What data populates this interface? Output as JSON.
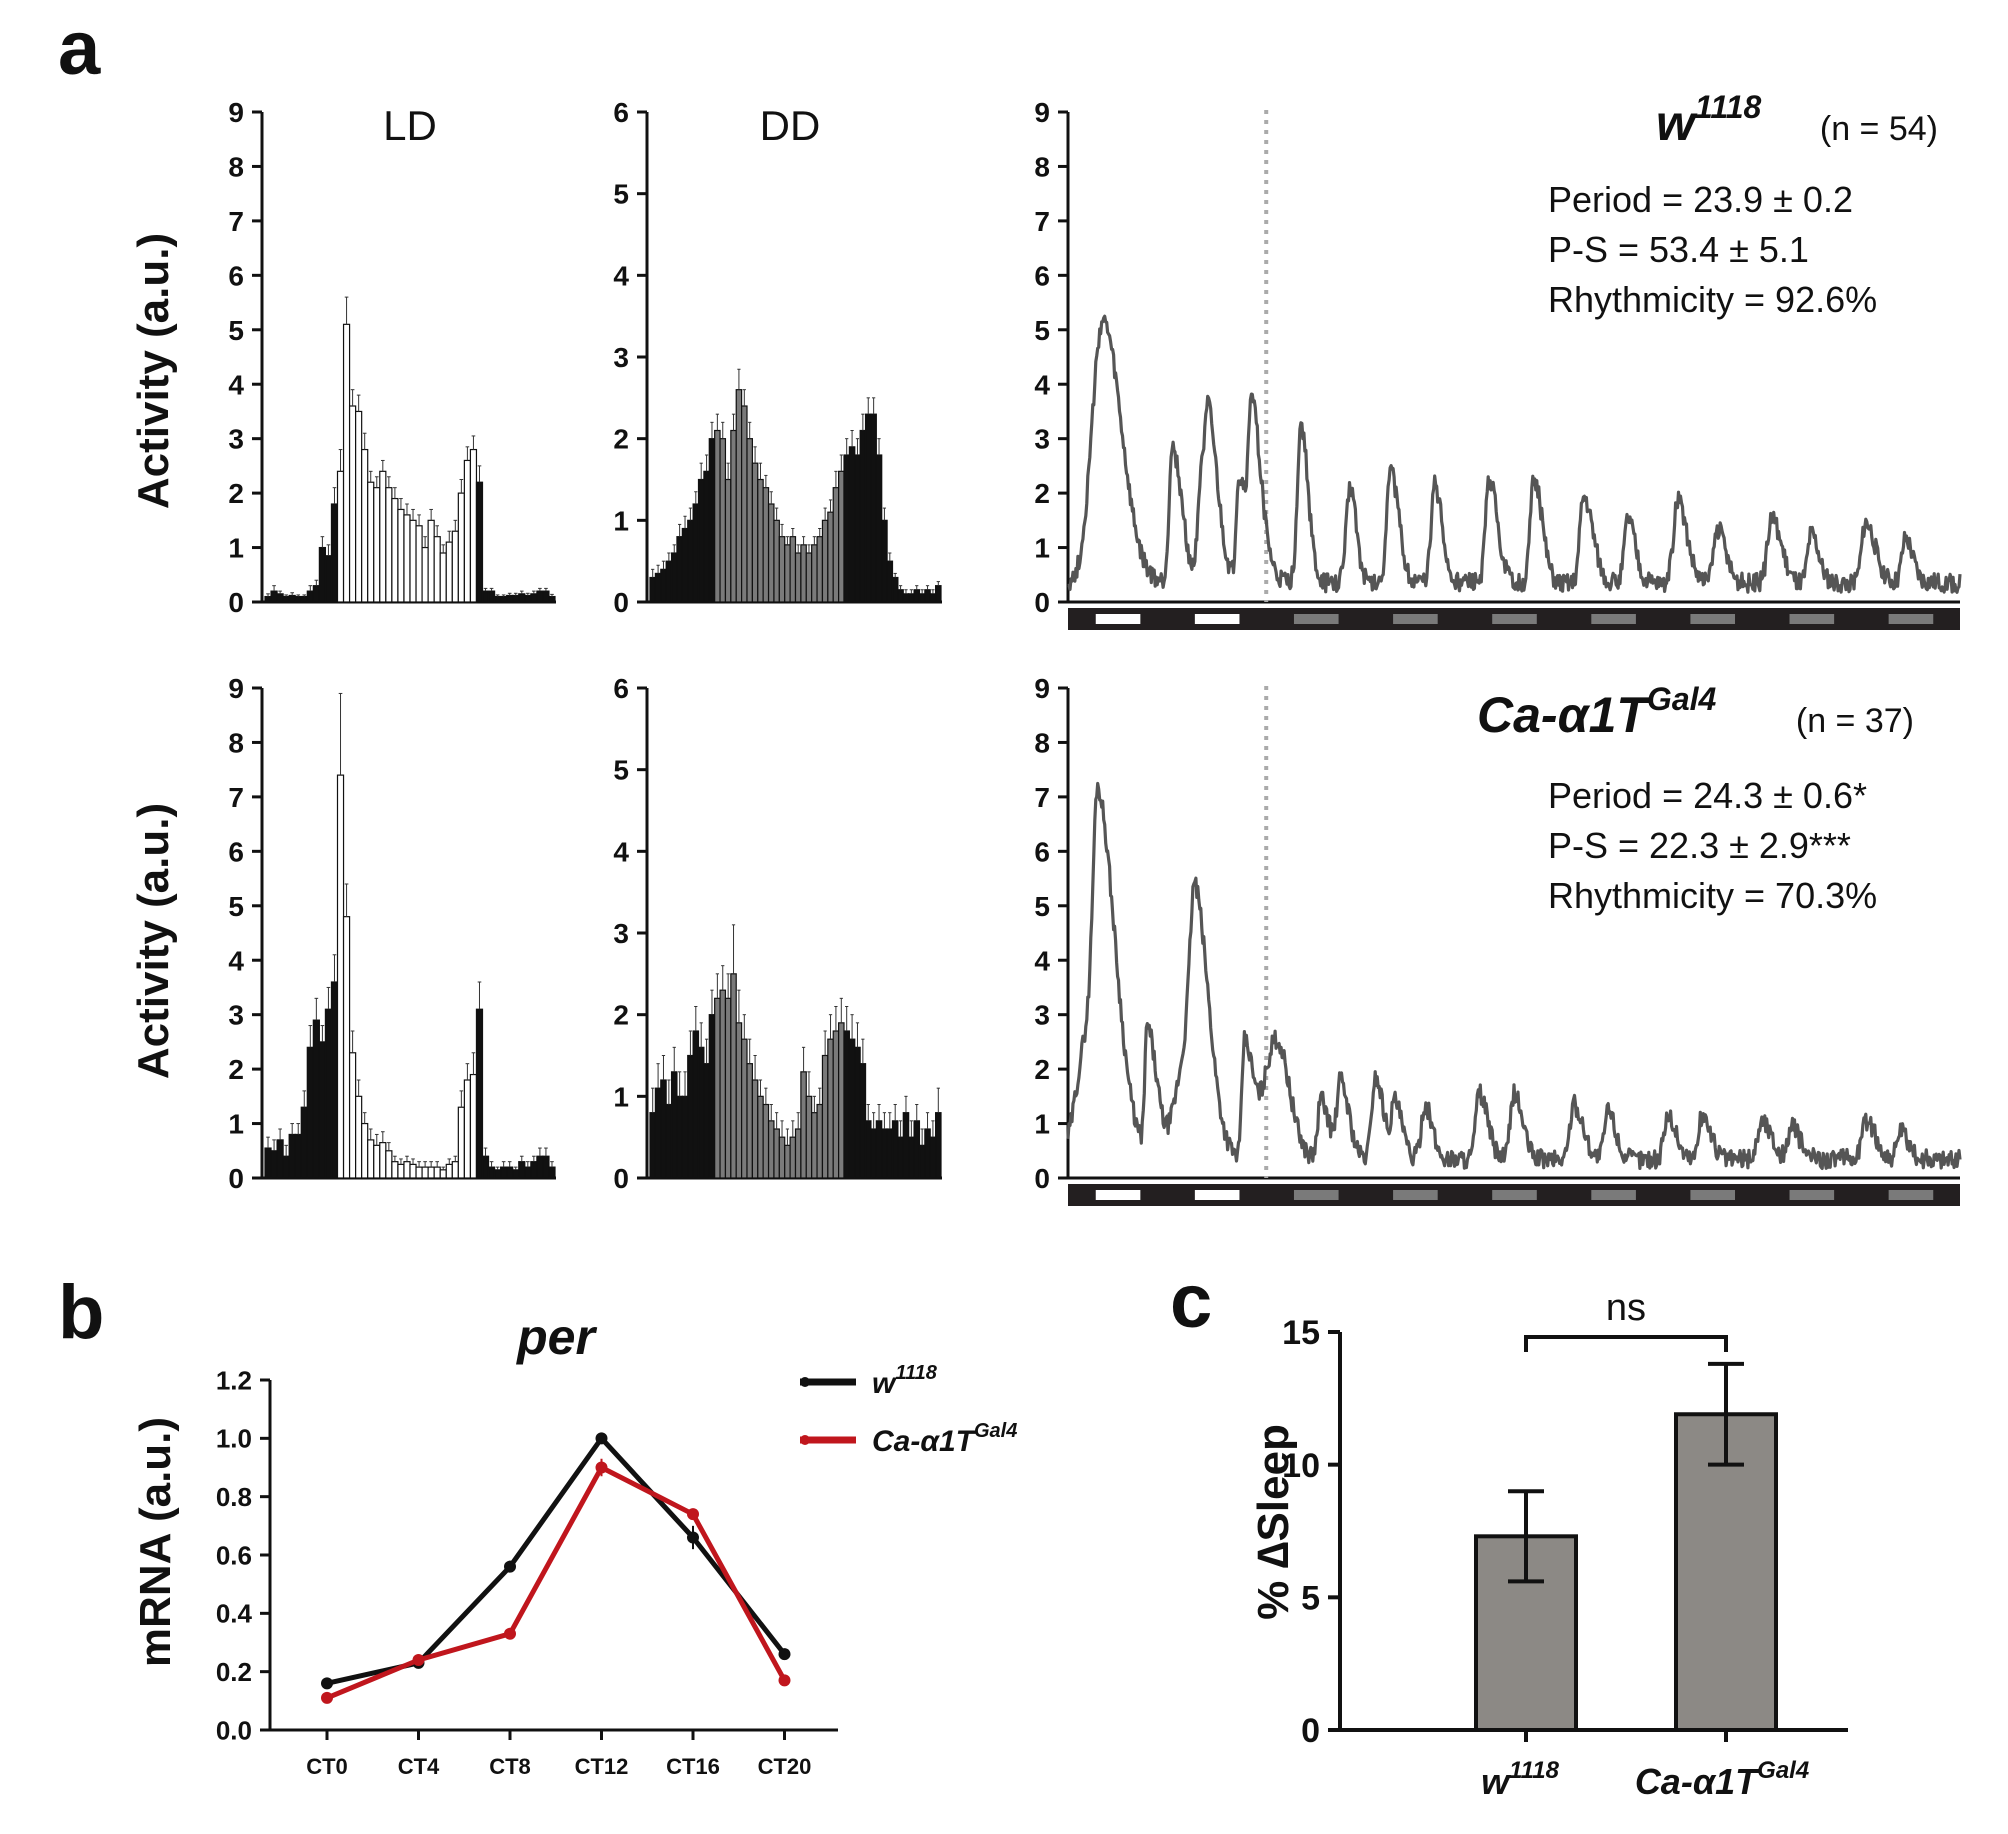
{
  "panel_labels": {
    "a": "a",
    "b": "b",
    "c": "c"
  },
  "colors": {
    "black": "#111111",
    "red": "#c0161d",
    "gray_trace": "#555555",
    "dd_bar": "#7a7a7a",
    "sleep_bar": "#8c8985",
    "dark_band": "#231f20",
    "light_band": "#ffffff",
    "subjective_day": "#7a7a7a"
  },
  "panel_a": {
    "ylabel": "Activity (a.u.)",
    "conditions": {
      "ld": "LD",
      "dd": "DD"
    },
    "rows": [
      {
        "genotype": "w",
        "genotype_sup": "1118",
        "n": "(n = 54)",
        "stats": [
          "Period = 23.9 ± 0.2",
          "P-S = 53.4 ± 5.1",
          "Rhythmicity = 92.6%"
        ]
      },
      {
        "genotype": "Ca-α1T",
        "genotype_sup": "Gal4",
        "n": "(n = 37)",
        "stats": [
          "Period = 24.3 ± 0.6*",
          "P-S = 22.3 ± 2.9***",
          "Rhythmicity = 70.3%"
        ]
      }
    ]
  },
  "chart_data": [
    {
      "id": "a_w1118_LD",
      "type": "bar",
      "title": "LD",
      "ylim": [
        0,
        9
      ],
      "yticks": [
        0,
        1,
        2,
        3,
        4,
        5,
        6,
        7,
        8,
        9
      ],
      "light_bins": [
        12,
        35
      ],
      "values": [
        0.1,
        0.2,
        0.15,
        0.1,
        0.12,
        0.1,
        0.1,
        0.2,
        0.3,
        1.0,
        0.85,
        1.8,
        2.4,
        5.1,
        3.6,
        3.5,
        2.8,
        2.2,
        2.1,
        2.4,
        2.1,
        1.9,
        1.7,
        1.6,
        1.5,
        1.4,
        1.0,
        1.5,
        1.2,
        0.9,
        1.1,
        1.3,
        2.0,
        2.6,
        2.8,
        2.2,
        0.2,
        0.2,
        0.1,
        0.1,
        0.12,
        0.12,
        0.15,
        0.12,
        0.15,
        0.2,
        0.2,
        0.1
      ],
      "errors": [
        0.05,
        0.1,
        0.05,
        0.03,
        0.05,
        0.03,
        0.03,
        0.1,
        0.1,
        0.2,
        0.2,
        0.3,
        0.4,
        0.5,
        0.3,
        0.3,
        0.3,
        0.2,
        0.2,
        0.2,
        0.2,
        0.2,
        0.2,
        0.2,
        0.2,
        0.2,
        0.2,
        0.2,
        0.2,
        0.15,
        0.2,
        0.2,
        0.25,
        0.25,
        0.25,
        0.3,
        0.05,
        0.05,
        0.03,
        0.03,
        0.04,
        0.04,
        0.05,
        0.04,
        0.05,
        0.05,
        0.05,
        0.04
      ]
    },
    {
      "id": "a_w1118_DD",
      "type": "bar",
      "title": "DD",
      "ylim": [
        0,
        6
      ],
      "yticks": [
        0,
        1,
        2,
        3,
        4,
        5,
        6
      ],
      "light_bins": [
        12,
        36
      ],
      "values": [
        0.3,
        0.35,
        0.4,
        0.5,
        0.6,
        0.8,
        0.9,
        1.0,
        1.2,
        1.5,
        1.6,
        2.0,
        2.1,
        2.0,
        1.5,
        2.1,
        2.6,
        2.4,
        2.0,
        1.7,
        1.5,
        1.4,
        1.2,
        1.0,
        0.8,
        0.7,
        0.8,
        0.6,
        0.7,
        0.6,
        0.7,
        0.8,
        1.0,
        1.1,
        1.4,
        1.6,
        1.8,
        1.9,
        1.8,
        2.1,
        2.3,
        2.3,
        1.8,
        1.0,
        0.5,
        0.3,
        0.15,
        0.1,
        0.1,
        0.15,
        0.1,
        0.15,
        0.1,
        0.2
      ],
      "errors": [
        0.1,
        0.1,
        0.1,
        0.1,
        0.1,
        0.15,
        0.15,
        0.15,
        0.15,
        0.2,
        0.2,
        0.2,
        0.2,
        0.2,
        0.2,
        0.2,
        0.25,
        0.2,
        0.2,
        0.2,
        0.2,
        0.15,
        0.15,
        0.15,
        0.15,
        0.1,
        0.1,
        0.1,
        0.1,
        0.1,
        0.1,
        0.1,
        0.15,
        0.15,
        0.2,
        0.2,
        0.2,
        0.2,
        0.2,
        0.2,
        0.2,
        0.2,
        0.2,
        0.15,
        0.1,
        0.05,
        0.05,
        0.05,
        0.05,
        0.05,
        0.05,
        0.05,
        0.05,
        0.05
      ]
    },
    {
      "id": "a_w1118_trace",
      "type": "line",
      "ylim": [
        0,
        9
      ],
      "yticks": [
        0,
        1,
        2,
        3,
        4,
        5,
        6,
        7,
        8,
        9
      ],
      "days": 9,
      "ld_days": 2,
      "peaks": [
        [
          0.35,
          1.55,
          0.9,
          4.8
        ],
        [
          1.05,
          0.8,
          0.25,
          2.5
        ],
        [
          1.35,
          1.0,
          0.3,
          2.2
        ],
        [
          1.42,
          0.8,
          0.25,
          1.4
        ],
        [
          1.72,
          1.3,
          0.2,
          1.9
        ],
        [
          1.85,
          0.8,
          0.2,
          2.2
        ],
        [
          2.35,
          0.6,
          0.3,
          2.9
        ],
        [
          2.85,
          0.5,
          0.35,
          1.8
        ],
        [
          3.25,
          0.7,
          0.3,
          2.1
        ],
        [
          3.7,
          0.6,
          0.3,
          1.8
        ],
        [
          4.25,
          0.7,
          0.3,
          1.9
        ],
        [
          4.7,
          0.7,
          0.3,
          1.9
        ],
        [
          5.2,
          0.8,
          0.3,
          1.6
        ],
        [
          5.65,
          0.6,
          0.3,
          1.2
        ],
        [
          6.15,
          0.8,
          0.35,
          1.5
        ],
        [
          6.55,
          0.7,
          0.3,
          1.0
        ],
        [
          7.1,
          0.8,
          0.35,
          1.2
        ],
        [
          7.5,
          0.6,
          0.3,
          0.9
        ],
        [
          8.05,
          0.8,
          0.35,
          1.1
        ],
        [
          8.45,
          0.6,
          0.3,
          0.8
        ]
      ]
    },
    {
      "id": "a_cac_LD",
      "type": "bar",
      "ylim": [
        0,
        9
      ],
      "yticks": [
        0,
        1,
        2,
        3,
        4,
        5,
        6,
        7,
        8,
        9
      ],
      "light_bins": [
        12,
        35
      ],
      "values": [
        0.55,
        0.5,
        0.7,
        0.4,
        0.8,
        0.8,
        1.3,
        2.4,
        2.9,
        2.5,
        3.1,
        3.6,
        7.4,
        4.8,
        2.3,
        1.5,
        1.0,
        0.7,
        0.6,
        0.65,
        0.5,
        0.3,
        0.25,
        0.3,
        0.25,
        0.2,
        0.2,
        0.2,
        0.2,
        0.15,
        0.25,
        0.3,
        1.3,
        1.8,
        1.9,
        3.1,
        0.4,
        0.2,
        0.15,
        0.2,
        0.2,
        0.15,
        0.3,
        0.2,
        0.3,
        0.4,
        0.4,
        0.2
      ],
      "errors": [
        0.2,
        0.2,
        0.2,
        0.2,
        0.2,
        0.2,
        0.3,
        0.4,
        0.4,
        0.3,
        0.4,
        0.5,
        1.5,
        0.6,
        0.4,
        0.3,
        0.2,
        0.2,
        0.2,
        0.2,
        0.15,
        0.1,
        0.1,
        0.1,
        0.1,
        0.1,
        0.1,
        0.1,
        0.1,
        0.05,
        0.1,
        0.1,
        0.3,
        0.3,
        0.4,
        0.5,
        0.15,
        0.1,
        0.05,
        0.1,
        0.1,
        0.05,
        0.1,
        0.1,
        0.1,
        0.15,
        0.15,
        0.1
      ]
    },
    {
      "id": "a_cac_DD",
      "type": "bar",
      "ylim": [
        0,
        6
      ],
      "yticks": [
        0,
        1,
        2,
        3,
        4,
        5,
        6
      ],
      "light_bins": [
        12,
        36
      ],
      "values": [
        0.8,
        1.1,
        1.2,
        0.9,
        1.3,
        1.0,
        1.0,
        1.5,
        1.8,
        1.6,
        1.4,
        2.0,
        2.2,
        2.3,
        2.2,
        2.5,
        1.9,
        1.7,
        1.4,
        1.2,
        1.0,
        0.9,
        0.7,
        0.6,
        0.5,
        0.4,
        0.5,
        0.6,
        1.3,
        1.0,
        0.8,
        0.9,
        1.5,
        1.7,
        1.8,
        1.9,
        1.8,
        1.7,
        1.6,
        1.4,
        0.7,
        0.6,
        0.7,
        0.6,
        0.6,
        0.7,
        0.5,
        0.8,
        0.5,
        0.7,
        0.4,
        0.6,
        0.5,
        0.8
      ],
      "errors": [
        0.3,
        0.3,
        0.3,
        0.3,
        0.3,
        0.3,
        0.3,
        0.3,
        0.3,
        0.3,
        0.3,
        0.3,
        0.3,
        0.3,
        0.3,
        0.6,
        0.4,
        0.3,
        0.3,
        0.3,
        0.2,
        0.2,
        0.2,
        0.2,
        0.2,
        0.2,
        0.2,
        0.2,
        0.3,
        0.3,
        0.2,
        0.2,
        0.3,
        0.3,
        0.3,
        0.3,
        0.3,
        0.3,
        0.3,
        0.3,
        0.2,
        0.2,
        0.2,
        0.2,
        0.2,
        0.2,
        0.2,
        0.2,
        0.2,
        0.2,
        0.2,
        0.2,
        0.2,
        0.3
      ]
    },
    {
      "id": "a_cac_trace",
      "type": "line",
      "ylim": [
        0,
        9
      ],
      "yticks": [
        0,
        1,
        2,
        3,
        4,
        5,
        6,
        7,
        8,
        9
      ],
      "days": 9,
      "ld_days": 2,
      "peaks": [
        [
          0.2,
          1.8,
          0.9,
          2.3
        ],
        [
          0.3,
          1.5,
          0.4,
          4.8
        ],
        [
          0.8,
          0.8,
          0.2,
          2.3
        ],
        [
          1.2,
          1.4,
          0.9,
          2.0
        ],
        [
          1.28,
          1.2,
          0.4,
          3.3
        ],
        [
          1.78,
          0.7,
          0.2,
          2.1
        ],
        [
          2.1,
          1.1,
          1.0,
          2.2
        ],
        [
          2.55,
          0.7,
          0.25,
          1.1
        ],
        [
          2.75,
          0.7,
          0.3,
          1.4
        ],
        [
          3.1,
          0.7,
          0.3,
          1.5
        ],
        [
          3.3,
          0.6,
          0.3,
          1.0
        ],
        [
          3.6,
          0.6,
          0.3,
          1.0
        ],
        [
          4.15,
          0.7,
          0.3,
          1.2
        ],
        [
          4.5,
          0.7,
          0.3,
          1.2
        ],
        [
          5.1,
          0.8,
          0.3,
          1.0
        ],
        [
          5.45,
          0.6,
          0.3,
          0.9
        ],
        [
          6.05,
          0.7,
          0.3,
          0.8
        ],
        [
          6.4,
          0.7,
          0.3,
          0.8
        ],
        [
          7.0,
          0.8,
          0.35,
          0.7
        ],
        [
          7.3,
          0.7,
          0.3,
          0.6
        ],
        [
          8.05,
          0.8,
          0.35,
          0.7
        ],
        [
          8.4,
          0.6,
          0.3,
          0.5
        ]
      ]
    },
    {
      "id": "b_per",
      "type": "line",
      "title": "per",
      "ylabel": "mRNA (a.u.)",
      "categories": [
        "CT0",
        "CT4",
        "CT8",
        "CT12",
        "CT16",
        "CT20"
      ],
      "ylim": [
        0,
        1.2
      ],
      "yticks": [
        "0.0",
        "0.2",
        "0.4",
        "0.6",
        "0.8",
        "1.0",
        "1.2"
      ],
      "series": [
        {
          "name": "w",
          "name_sup": "1118",
          "color": "#111111",
          "values": [
            0.16,
            0.23,
            0.56,
            1.0,
            0.66,
            0.26
          ],
          "errors": [
            0.005,
            0.01,
            0.02,
            0.005,
            0.04,
            0.005
          ]
        },
        {
          "name": "Ca-α1T",
          "name_sup": "Gal4",
          "color": "#c0161d",
          "values": [
            0.11,
            0.24,
            0.33,
            0.9,
            0.74,
            0.17
          ],
          "errors": [
            0.005,
            0.01,
            0.005,
            0.03,
            0.01,
            0.005
          ]
        }
      ],
      "legend": "top-right"
    },
    {
      "id": "c_sleep",
      "type": "bar",
      "ylabel": "% ∆Sleep",
      "categories": [
        {
          "name": "w",
          "sup": "1118"
        },
        {
          "name": "Ca-α1T",
          "sup": "Gal4"
        }
      ],
      "values": [
        7.3,
        11.9
      ],
      "errors": [
        1.7,
        1.9
      ],
      "ylim": [
        0,
        15
      ],
      "yticks": [
        "0",
        "5",
        "10",
        "15"
      ],
      "annotation": "ns"
    }
  ]
}
